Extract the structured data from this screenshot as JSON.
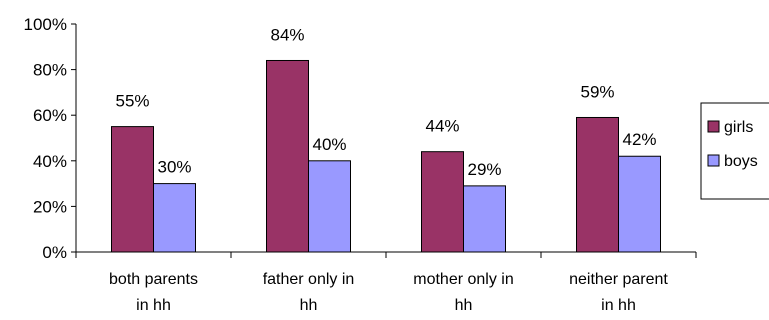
{
  "chart_data": {
    "type": "bar",
    "categories": [
      [
        "both parents",
        "in hh"
      ],
      [
        "father only in",
        "hh"
      ],
      [
        "mother only in",
        "hh"
      ],
      [
        "neither parent",
        "in hh"
      ]
    ],
    "series": [
      {
        "name": "girls",
        "values": [
          55,
          84,
          44,
          59
        ],
        "labels": [
          "55%",
          "84%",
          "44%",
          "59%"
        ]
      },
      {
        "name": "boys",
        "values": [
          30,
          40,
          29,
          42
        ],
        "labels": [
          "30%",
          "40%",
          "29%",
          "42%"
        ]
      }
    ],
    "yticks": [
      "0%",
      "20%",
      "40%",
      "60%",
      "80%",
      "100%"
    ],
    "ylim": [
      0,
      100
    ],
    "grid": false,
    "legend_position": "right",
    "colors": {
      "girls": "#993366",
      "boys": "#9999ff"
    }
  }
}
